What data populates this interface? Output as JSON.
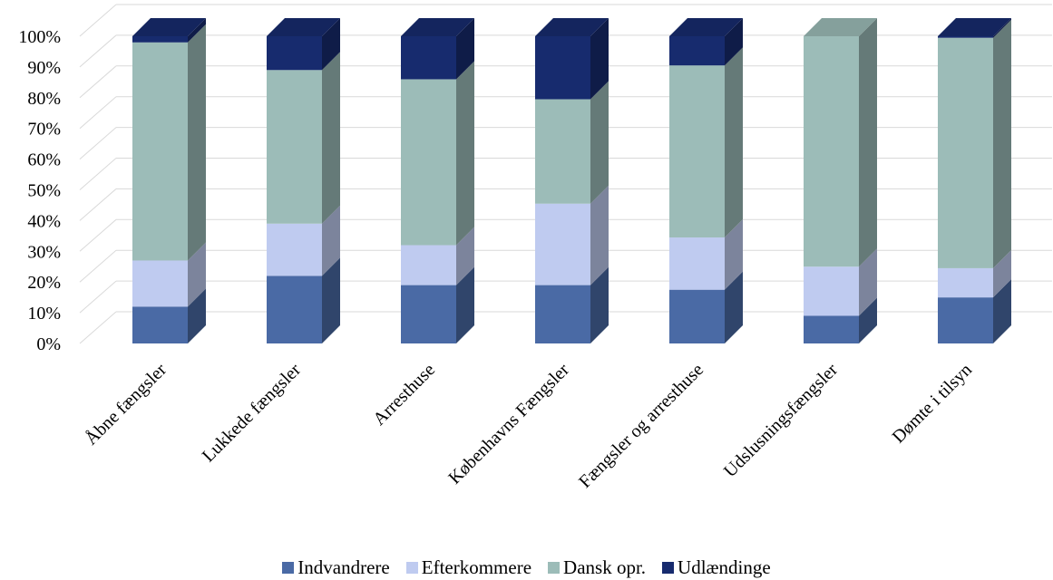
{
  "chart_data": {
    "type": "bar",
    "stacked": true,
    "percent_stacked": true,
    "three_d": true,
    "categories": [
      "Åbne fængsler",
      "Lukkede fængsler",
      "Arresthuse",
      "Københavns Fængsler",
      "Fængsler og arresthuse",
      "Udslusningsfængsler",
      "Dømte i tilsyn"
    ],
    "series": [
      {
        "name": "Indvandrere",
        "color": "#4a6aa5",
        "values": [
          12,
          22,
          19,
          19,
          17.5,
          9,
          15
        ]
      },
      {
        "name": "Efterkommere",
        "color": "#bfcbf0",
        "values": [
          15,
          17,
          13,
          26.5,
          17,
          16,
          9.5
        ]
      },
      {
        "name": "Dansk opr.",
        "color": "#9cbcb8",
        "values": [
          71,
          50,
          54,
          34,
          56,
          75,
          75
        ]
      },
      {
        "name": "Udlændinge",
        "color": "#172b6e",
        "values": [
          2,
          11,
          14,
          20.5,
          9.5,
          0,
          0.5
        ]
      }
    ],
    "yticks": [
      "0%",
      "10%",
      "20%",
      "30%",
      "40%",
      "50%",
      "60%",
      "70%",
      "80%",
      "90%",
      "100%"
    ],
    "ylim": [
      0,
      100
    ],
    "grid": true,
    "legend_position": "bottom"
  }
}
